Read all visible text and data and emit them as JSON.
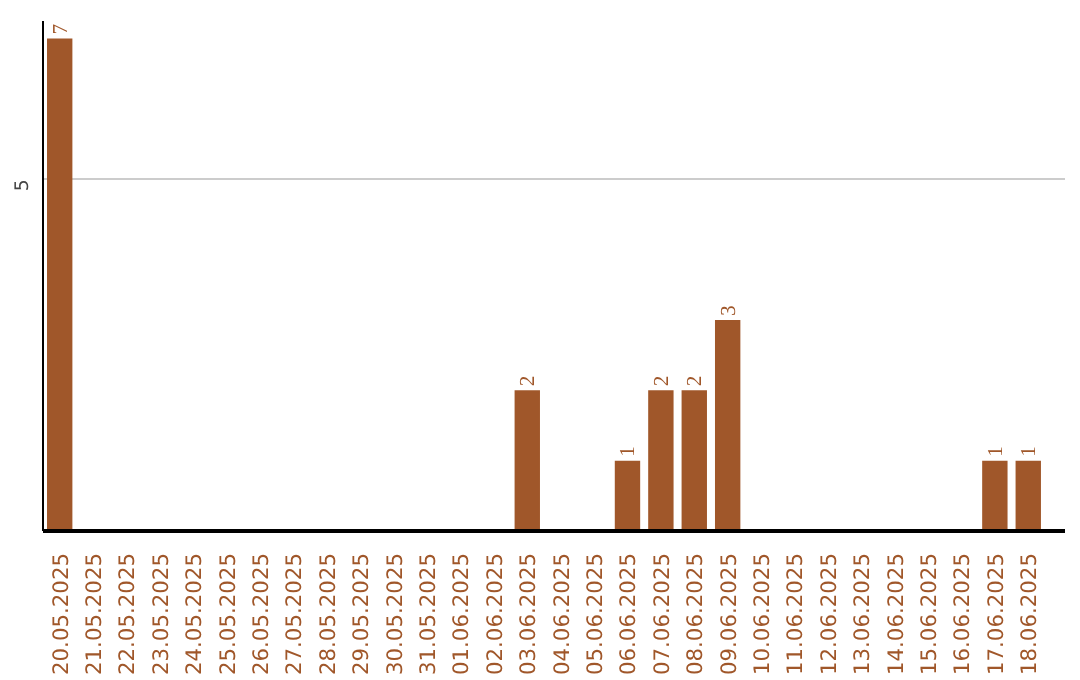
{
  "chart_data": {
    "type": "bar",
    "categories": [
      "20.05.2025",
      "21.05.2025",
      "22.05.2025",
      "23.05.2025",
      "24.05.2025",
      "25.05.2025",
      "26.05.2025",
      "27.05.2025",
      "28.05.2025",
      "29.05.2025",
      "30.05.2025",
      "31.05.2025",
      "01.06.2025",
      "02.06.2025",
      "03.06.2025",
      "04.06.2025",
      "05.06.2025",
      "06.06.2025",
      "07.06.2025",
      "08.06.2025",
      "09.06.2025",
      "10.06.2025",
      "11.06.2025",
      "12.06.2025",
      "13.06.2025",
      "14.06.2025",
      "15.06.2025",
      "16.06.2025",
      "17.06.2025",
      "18.06.2025"
    ],
    "values": [
      7,
      0,
      0,
      0,
      0,
      0,
      0,
      0,
      0,
      0,
      0,
      0,
      0,
      0,
      2,
      0,
      0,
      1,
      2,
      2,
      3,
      0,
      0,
      0,
      0,
      0,
      0,
      0,
      1,
      1
    ],
    "value_labels": [
      "7",
      null,
      null,
      null,
      null,
      null,
      null,
      null,
      null,
      null,
      null,
      null,
      null,
      null,
      "2",
      null,
      null,
      "1",
      "2",
      "2",
      "3",
      null,
      null,
      null,
      null,
      null,
      null,
      null,
      "1",
      "1"
    ],
    "color": "#a0572a",
    "ylim": [
      0,
      7.25
    ],
    "yticks": [
      5
    ],
    "grid": "y"
  }
}
